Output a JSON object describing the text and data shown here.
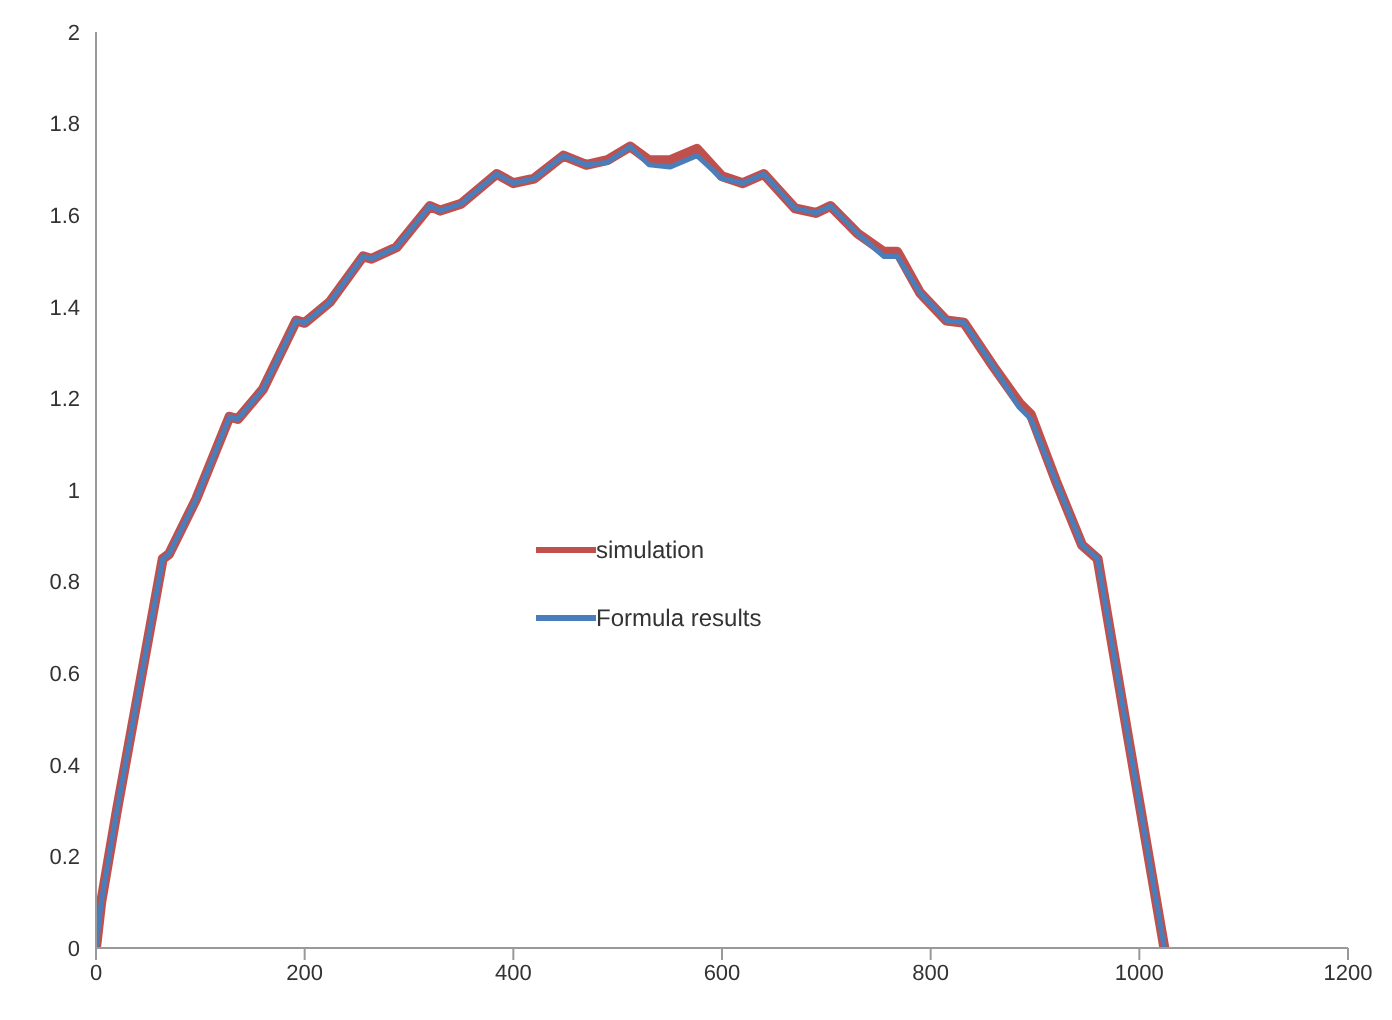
{
  "chart_data": {
    "type": "line",
    "x": [
      0,
      5,
      20,
      40,
      64,
      70,
      96,
      128,
      136,
      160,
      192,
      200,
      224,
      256,
      264,
      288,
      320,
      330,
      350,
      384,
      400,
      420,
      448,
      470,
      490,
      512,
      530,
      550,
      576,
      600,
      620,
      640,
      670,
      690,
      704,
      730,
      755,
      768,
      790,
      815,
      832,
      860,
      885,
      896,
      920,
      945,
      960,
      990,
      1024
    ],
    "series": [
      {
        "name": "simulation",
        "color": "#c0504d",
        "values": [
          0,
          0.1,
          0.3,
          0.55,
          0.85,
          0.86,
          0.98,
          1.16,
          1.155,
          1.22,
          1.37,
          1.365,
          1.41,
          1.51,
          1.505,
          1.53,
          1.62,
          1.61,
          1.625,
          1.69,
          1.67,
          1.68,
          1.73,
          1.71,
          1.72,
          1.75,
          1.72,
          1.72,
          1.745,
          1.685,
          1.67,
          1.69,
          1.615,
          1.605,
          1.62,
          1.56,
          1.52,
          1.52,
          1.43,
          1.37,
          1.365,
          1.27,
          1.19,
          1.165,
          1.02,
          0.88,
          0.85,
          0.45,
          0
        ]
      },
      {
        "name": "Formula results",
        "color": "#4a7ebb",
        "values": [
          0,
          0.1,
          0.3,
          0.55,
          0.85,
          0.86,
          0.98,
          1.16,
          1.155,
          1.22,
          1.37,
          1.365,
          1.41,
          1.51,
          1.505,
          1.53,
          1.62,
          1.61,
          1.625,
          1.69,
          1.67,
          1.68,
          1.73,
          1.71,
          1.715,
          1.75,
          1.71,
          1.705,
          1.73,
          1.68,
          1.67,
          1.69,
          1.615,
          1.605,
          1.62,
          1.56,
          1.51,
          1.51,
          1.43,
          1.37,
          1.365,
          1.27,
          1.18,
          1.155,
          1.02,
          0.88,
          0.85,
          0.45,
          0
        ]
      }
    ],
    "xlim": [
      0,
      1200
    ],
    "xticks": [
      0,
      200,
      400,
      600,
      800,
      1000,
      1200
    ],
    "ylim": [
      0,
      2
    ],
    "yticks": [
      0,
      0.2,
      0.4,
      0.6,
      0.8,
      1,
      1.2,
      1.4,
      1.6,
      1.8,
      2
    ],
    "grid": false,
    "legend": "center",
    "marker": "none",
    "line_style": "solid"
  }
}
